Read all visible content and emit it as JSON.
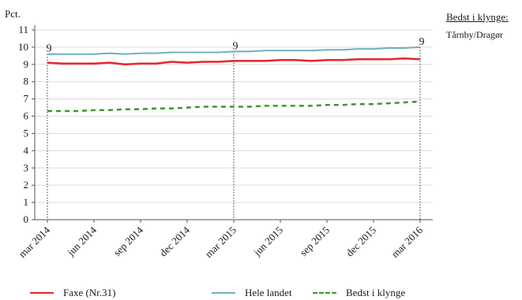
{
  "chart_data": {
    "type": "line",
    "ylabel": "Pct.",
    "ylim": [
      0,
      11
    ],
    "yticks": [
      "0",
      "1",
      "2",
      "3",
      "4",
      "5",
      "6",
      "7",
      "8",
      "9",
      "10",
      "11"
    ],
    "categories": [
      "mar 2014",
      "jun 2014",
      "sep 2014",
      "dec 2014",
      "mar 2015",
      "jun 2015",
      "sep 2015",
      "dec 2015",
      "mar 2016"
    ],
    "x": [
      0,
      1,
      2,
      3,
      4,
      5,
      6,
      7,
      8,
      9,
      10,
      11,
      12,
      13,
      14,
      15,
      16,
      17,
      18,
      19,
      20,
      21,
      22,
      23,
      24
    ],
    "series": [
      {
        "name": "Faxe (Nr.31)",
        "color": "#e8242b",
        "style": "solid",
        "values": [
          9.1,
          9.05,
          9.05,
          9.05,
          9.1,
          9.0,
          9.05,
          9.05,
          9.15,
          9.1,
          9.15,
          9.15,
          9.2,
          9.2,
          9.2,
          9.25,
          9.25,
          9.2,
          9.25,
          9.25,
          9.3,
          9.3,
          9.3,
          9.35,
          9.3
        ]
      },
      {
        "name": "Hele landet",
        "color": "#6fb0bf",
        "style": "solid",
        "values": [
          9.6,
          9.6,
          9.6,
          9.6,
          9.65,
          9.6,
          9.65,
          9.65,
          9.7,
          9.7,
          9.7,
          9.7,
          9.75,
          9.75,
          9.8,
          9.8,
          9.8,
          9.8,
          9.85,
          9.85,
          9.9,
          9.9,
          9.95,
          9.95,
          10.0
        ]
      },
      {
        "name": "Bedst i klynge",
        "color": "#3a9a2a",
        "style": "dashed",
        "values": [
          6.3,
          6.3,
          6.3,
          6.35,
          6.35,
          6.4,
          6.4,
          6.45,
          6.45,
          6.5,
          6.55,
          6.55,
          6.55,
          6.55,
          6.6,
          6.6,
          6.6,
          6.6,
          6.65,
          6.65,
          6.7,
          6.7,
          6.75,
          6.8,
          6.85
        ]
      }
    ],
    "annotations": [
      {
        "label": "9",
        "x": 0
      },
      {
        "label": "9",
        "x": 12
      },
      {
        "label": "9",
        "x": 24
      }
    ],
    "grid": true,
    "legend": "bottom"
  },
  "side_panel": {
    "title": "Bedst i klynge:",
    "value": "Tårnby/Dragør"
  }
}
